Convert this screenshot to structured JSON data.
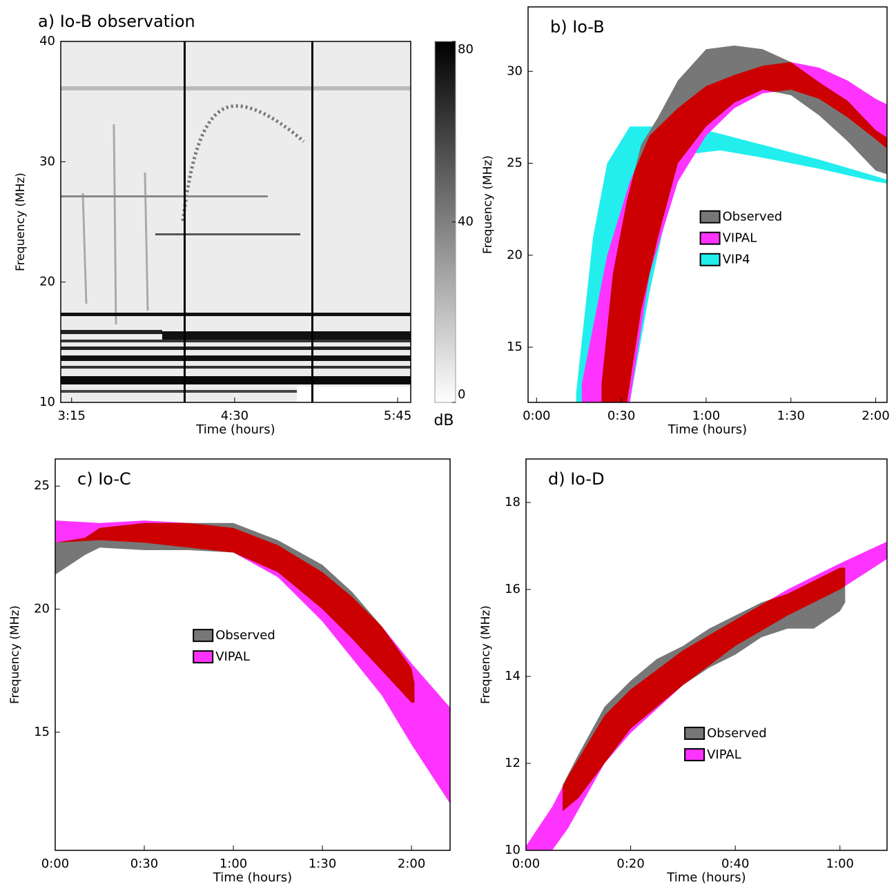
{
  "chart_data": [
    {
      "type": "spectrogram",
      "title": "a) Io-B observation",
      "x_label": "Time (hours)",
      "y_label": "Frequency (MHz)",
      "xlim": [
        190,
        351
      ],
      "xticks": [
        {
          "value": 195,
          "label": "3:15"
        },
        {
          "value": 270,
          "label": "4:30"
        },
        {
          "value": 345,
          "label": "5:45"
        }
      ],
      "ylim": [
        10,
        40
      ],
      "yticks": [
        10,
        20,
        30,
        40
      ],
      "colorbar": {
        "label": "dB",
        "lim": [
          0,
          80
        ],
        "ticks": [
          0,
          40,
          80
        ]
      }
    },
    {
      "type": "range_area",
      "title": "b) Io-B",
      "x_label": "Time (hours)",
      "y_label": "Frequency (MHz)",
      "xlim": [
        -3,
        124
      ],
      "xticks": [
        {
          "value": 0,
          "label": "0:00"
        },
        {
          "value": 30,
          "label": "0:30"
        },
        {
          "value": 60,
          "label": "1:00"
        },
        {
          "value": 90,
          "label": "1:30"
        },
        {
          "value": 120,
          "label": "2:00"
        }
      ],
      "ylim": [
        12,
        33.5
      ],
      "yticks": [
        15,
        20,
        25,
        30
      ],
      "legend": "center right",
      "overlap_color": "#cc0000",
      "series": [
        {
          "name": "Observed",
          "color": "#777777",
          "x": [
            23,
            27,
            32,
            37,
            43,
            50,
            60,
            70,
            80,
            90,
            100,
            110,
            120,
            124
          ],
          "low": [
            12,
            12,
            12,
            17,
            21,
            25,
            27,
            28.3,
            29,
            28.7,
            27.6,
            26.2,
            24.6,
            24.4
          ],
          "high": [
            13,
            19,
            23,
            26,
            27.5,
            29.5,
            31.2,
            31.4,
            31.2,
            30.5,
            29.4,
            28.4,
            26.8,
            26.4
          ]
        },
        {
          "name": "VIPAL",
          "color": "#ff33ff",
          "x": [
            16,
            25,
            33,
            40,
            50,
            60,
            70,
            80,
            90,
            100,
            110,
            120,
            124
          ],
          "low": [
            12,
            12,
            12,
            19,
            24,
            26.5,
            28,
            28.8,
            29,
            28.5,
            27.5,
            26.3,
            25.8
          ],
          "high": [
            13,
            20,
            24,
            26.5,
            28,
            29.2,
            29.8,
            30.3,
            30.5,
            30.2,
            29.5,
            28.5,
            28.2
          ]
        },
        {
          "name": "VIP4",
          "color": "#22eeee",
          "x": [
            14,
            20,
            25,
            33,
            40,
            47,
            54,
            65,
            80,
            100,
            120,
            124
          ],
          "low": [
            12,
            12,
            12,
            12,
            18,
            23,
            25.5,
            25.7,
            25.3,
            24.7,
            24.0,
            23.9
          ],
          "high": [
            12.5,
            21,
            25,
            27,
            27,
            27,
            27,
            26.6,
            26,
            25.2,
            24.3,
            24.1
          ]
        }
      ]
    },
    {
      "type": "range_area",
      "title": "c) Io-C",
      "x_label": "Time (hours)",
      "y_label": "Frequency (MHz)",
      "xlim": [
        0,
        133
      ],
      "xticks": [
        {
          "value": 0,
          "label": "0:00"
        },
        {
          "value": 30,
          "label": "0:30"
        },
        {
          "value": 60,
          "label": "1:00"
        },
        {
          "value": 90,
          "label": "1:30"
        },
        {
          "value": 120,
          "label": "2:00"
        }
      ],
      "ylim": [
        10.2,
        26.1
      ],
      "yticks": [
        15,
        20,
        25
      ],
      "legend": "center",
      "overlap_color": "#cc0000",
      "series": [
        {
          "name": "Observed",
          "color": "#777777",
          "x": [
            0,
            10,
            15,
            30,
            45,
            60,
            75,
            90,
            100,
            110,
            120,
            121
          ],
          "low": [
            21.4,
            22.2,
            22.5,
            22.4,
            22.4,
            22.3,
            21.5,
            20,
            18.8,
            17.5,
            16.2,
            16.2
          ],
          "high": [
            22.7,
            22.9,
            23.3,
            23.5,
            23.5,
            23.5,
            22.8,
            21.8,
            20.7,
            19.3,
            17.6,
            17.0
          ]
        },
        {
          "name": "VIPAL",
          "color": "#ff33ff",
          "x": [
            0,
            15,
            30,
            45,
            60,
            75,
            90,
            100,
            110,
            120,
            133
          ],
          "low": [
            22.7,
            22.8,
            22.7,
            22.5,
            22.3,
            21.3,
            19.5,
            18,
            16.5,
            14.5,
            12.1
          ],
          "high": [
            23.6,
            23.5,
            23.6,
            23.5,
            23.3,
            22.6,
            21.5,
            20.5,
            19.3,
            17.8,
            16
          ]
        }
      ]
    },
    {
      "type": "range_area",
      "title": "d) Io-D",
      "x_label": "Time (hours)",
      "y_label": "Frequency (MHz)",
      "xlim": [
        0,
        69
      ],
      "xticks": [
        {
          "value": 0,
          "label": "0:00"
        },
        {
          "value": 20,
          "label": "0:20"
        },
        {
          "value": 40,
          "label": "0:40"
        },
        {
          "value": 60,
          "label": "1:00"
        }
      ],
      "ylim": [
        10,
        19
      ],
      "yticks": [
        10,
        12,
        14,
        16,
        18
      ],
      "legend": "lower right",
      "overlap_color": "#cc0000",
      "series": [
        {
          "name": "Observed",
          "color": "#777777",
          "x": [
            7,
            10,
            15,
            20,
            25,
            30,
            35,
            40,
            45,
            50,
            55,
            60,
            61
          ],
          "low": [
            10.9,
            11.2,
            12.0,
            12.8,
            13.3,
            13.8,
            14.2,
            14.5,
            14.9,
            15.1,
            15.1,
            15.5,
            15.7
          ],
          "high": [
            11.5,
            12.2,
            13.3,
            13.9,
            14.4,
            14.7,
            15.1,
            15.4,
            15.7,
            15.9,
            16.2,
            16.5,
            16.5
          ]
        },
        {
          "name": "VIPAL",
          "color": "#ff33ff",
          "x": [
            0,
            5,
            8,
            15,
            20,
            30,
            40,
            50,
            60,
            69
          ],
          "low": [
            10,
            10,
            10.5,
            12,
            12.7,
            13.8,
            14.7,
            15.4,
            16.0,
            16.7
          ],
          "high": [
            10.1,
            11,
            11.7,
            13.1,
            13.7,
            14.6,
            15.3,
            16.0,
            16.6,
            17.1
          ]
        }
      ]
    }
  ]
}
